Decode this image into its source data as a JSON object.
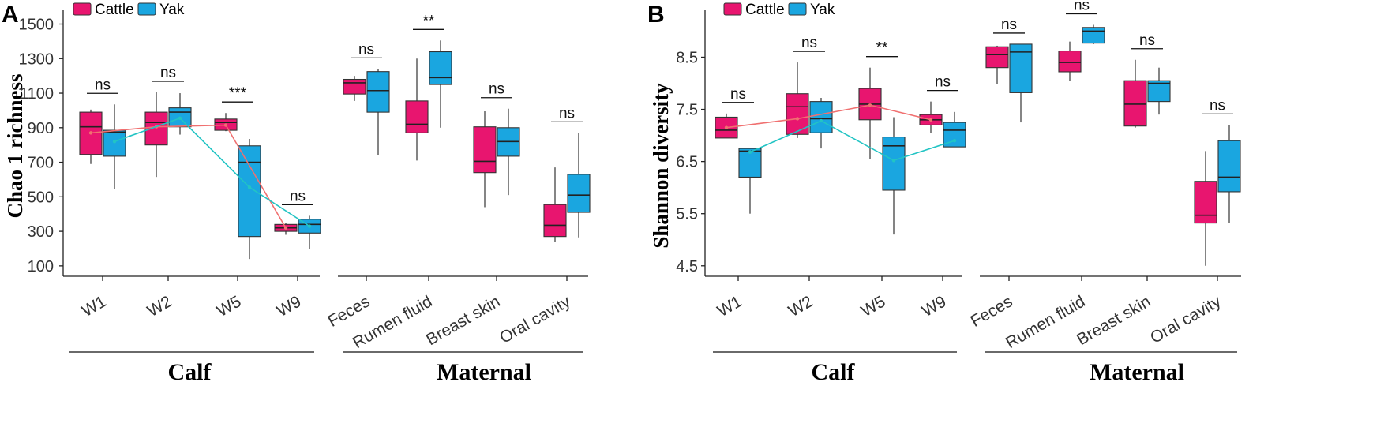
{
  "colors": {
    "cattle": "#e8156f",
    "yak": "#1aa6e0",
    "cattle_line": "#f07070",
    "yak_line": "#22c4c4"
  },
  "legend": {
    "cattle": "Cattle",
    "yak": "Yak"
  },
  "chart_data": [
    {
      "panel": "A",
      "type": "box",
      "ylabel": "Chao 1 richness",
      "ylim": [
        40,
        1580
      ],
      "yticks": [
        100,
        300,
        500,
        700,
        900,
        1100,
        1300,
        1500
      ],
      "groups": [
        {
          "label": "Calf",
          "categories": [
            "W1",
            "W2",
            "W5",
            "W9"
          ],
          "trend_lines": true,
          "boxes": [
            {
              "cattle": {
                "min": 690,
                "q1": 745,
                "median": 905,
                "q3": 990,
                "max": 1005
              },
              "yak": {
                "min": 545,
                "q1": 735,
                "median": 875,
                "q3": 885,
                "max": 1035
              },
              "sig": "ns"
            },
            {
              "cattle": {
                "min": 615,
                "q1": 800,
                "median": 930,
                "q3": 990,
                "max": 1105
              },
              "yak": {
                "min": 860,
                "q1": 905,
                "median": 990,
                "q3": 1015,
                "max": 1100
              },
              "sig": "ns"
            },
            {
              "cattle": {
                "min": 880,
                "q1": 885,
                "median": 930,
                "q3": 950,
                "max": 985
              },
              "yak": {
                "min": 140,
                "q1": 270,
                "median": 700,
                "q3": 795,
                "max": 835
              },
              "sig": "***"
            },
            {
              "cattle": {
                "min": 280,
                "q1": 300,
                "median": 320,
                "q3": 340,
                "max": 350
              },
              "yak": {
                "min": 200,
                "q1": 290,
                "median": 340,
                "q3": 370,
                "max": 390
              },
              "sig": "ns"
            }
          ],
          "means": {
            "cattle": [
              870,
              905,
              915,
              320
            ],
            "yak": [
              820,
              955,
              555,
              330
            ]
          }
        },
        {
          "label": "Maternal",
          "categories": [
            "Feces",
            "Rumen fluid",
            "Breast skin",
            "Oral cavity"
          ],
          "trend_lines": false,
          "boxes": [
            {
              "cattle": {
                "min": 1055,
                "q1": 1095,
                "median": 1160,
                "q3": 1180,
                "max": 1200
              },
              "yak": {
                "min": 740,
                "q1": 990,
                "median": 1115,
                "q3": 1225,
                "max": 1240
              },
              "sig": "ns"
            },
            {
              "cattle": {
                "min": 710,
                "q1": 870,
                "median": 920,
                "q3": 1055,
                "max": 1300
              },
              "yak": {
                "min": 900,
                "q1": 1150,
                "median": 1190,
                "q3": 1340,
                "max": 1405
              },
              "sig": "**"
            },
            {
              "cattle": {
                "min": 440,
                "q1": 640,
                "median": 705,
                "q3": 905,
                "max": 995
              },
              "yak": {
                "min": 510,
                "q1": 735,
                "median": 820,
                "q3": 900,
                "max": 1010
              },
              "sig": "ns"
            },
            {
              "cattle": {
                "min": 240,
                "q1": 270,
                "median": 335,
                "q3": 455,
                "max": 670
              },
              "yak": {
                "min": 265,
                "q1": 410,
                "median": 510,
                "q3": 630,
                "max": 870
              },
              "sig": "ns"
            }
          ]
        }
      ]
    },
    {
      "panel": "B",
      "type": "box",
      "ylabel": "Shannon diversity",
      "ylim": [
        4.3,
        9.4
      ],
      "yticks": [
        4.5,
        5.5,
        6.5,
        7.5,
        8.5
      ],
      "ytick_labels": [
        "4.5",
        "5.5",
        "6.5",
        "7.5",
        "8.5"
      ],
      "groups": [
        {
          "label": "Calf",
          "categories": [
            "W1",
            "W2",
            "W5",
            "W9"
          ],
          "trend_lines": true,
          "boxes": [
            {
              "cattle": {
                "min": 6.95,
                "q1": 6.95,
                "median": 7.1,
                "q3": 7.35,
                "max": 7.42
              },
              "yak": {
                "min": 5.5,
                "q1": 6.2,
                "median": 6.7,
                "q3": 6.75,
                "max": 6.75
              },
              "sig": "ns"
            },
            {
              "cattle": {
                "min": 6.95,
                "q1": 7.02,
                "median": 7.55,
                "q3": 7.8,
                "max": 8.4
              },
              "yak": {
                "min": 6.75,
                "q1": 7.05,
                "median": 7.32,
                "q3": 7.65,
                "max": 7.72
              },
              "sig": "ns"
            },
            {
              "cattle": {
                "min": 6.55,
                "q1": 7.3,
                "median": 7.6,
                "q3": 7.9,
                "max": 8.3
              },
              "yak": {
                "min": 5.1,
                "q1": 5.95,
                "median": 6.8,
                "q3": 6.97,
                "max": 7.35
              },
              "sig": "**"
            },
            {
              "cattle": {
                "min": 7.05,
                "q1": 7.2,
                "median": 7.3,
                "q3": 7.4,
                "max": 7.65
              },
              "yak": {
                "min": 6.78,
                "q1": 6.78,
                "median": 7.1,
                "q3": 7.25,
                "max": 7.45
              },
              "sig": "ns"
            }
          ],
          "means": {
            "cattle": [
              7.15,
              7.32,
              7.58,
              7.3
            ],
            "yak": [
              6.68,
              7.28,
              6.52,
              6.9
            ]
          }
        },
        {
          "label": "Maternal",
          "categories": [
            "Feces",
            "Rumen fluid",
            "Breast skin",
            "Oral cavity"
          ],
          "trend_lines": false,
          "boxes": [
            {
              "cattle": {
                "min": 7.98,
                "q1": 8.3,
                "median": 8.55,
                "q3": 8.7,
                "max": 8.72
              },
              "yak": {
                "min": 7.25,
                "q1": 7.82,
                "median": 8.6,
                "q3": 8.75,
                "max": 8.75
              },
              "sig": "ns"
            },
            {
              "cattle": {
                "min": 8.05,
                "q1": 8.22,
                "median": 8.4,
                "q3": 8.62,
                "max": 8.8
              },
              "yak": {
                "min": 8.75,
                "q1": 8.77,
                "median": 9.0,
                "q3": 9.07,
                "max": 9.12
              },
              "sig": "ns"
            },
            {
              "cattle": {
                "min": 7.15,
                "q1": 7.18,
                "median": 7.6,
                "q3": 8.05,
                "max": 8.45
              },
              "yak": {
                "min": 7.4,
                "q1": 7.65,
                "median": 8.0,
                "q3": 8.05,
                "max": 8.3
              },
              "sig": "ns"
            },
            {
              "cattle": {
                "min": 4.5,
                "q1": 5.32,
                "median": 5.47,
                "q3": 6.12,
                "max": 6.7
              },
              "yak": {
                "min": 5.32,
                "q1": 5.92,
                "median": 6.2,
                "q3": 6.9,
                "max": 7.2
              },
              "sig": "ns"
            }
          ]
        }
      ]
    }
  ]
}
